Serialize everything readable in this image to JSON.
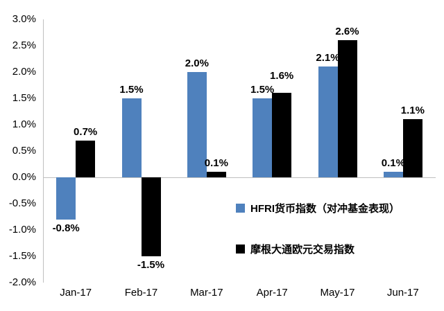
{
  "chart_data": {
    "type": "bar",
    "title": "",
    "xlabel": "",
    "ylabel": "",
    "categories": [
      "Jan-17",
      "Feb-17",
      "Mar-17",
      "Apr-17",
      "May-17",
      "Jun-17"
    ],
    "series": [
      {
        "name": "HFRI货币指数（对冲基金表现）",
        "color": "#4F81BD",
        "values": [
          -0.8,
          1.5,
          2.0,
          1.5,
          2.1,
          0.1
        ],
        "labels": [
          "-0.8%",
          "1.5%",
          "2.0%",
          "1.5%",
          "2.1%",
          "0.1%"
        ]
      },
      {
        "name": "摩根大通欧元交易指数",
        "color": "#000000",
        "values": [
          0.7,
          -1.5,
          0.1,
          1.6,
          2.6,
          1.1
        ],
        "labels": [
          "0.7%",
          "-1.5%",
          "0.1%",
          "1.6%",
          "2.6%",
          "1.1%"
        ]
      }
    ],
    "ylim": [
      -2.0,
      3.0
    ],
    "ytick_step": 0.5,
    "ytick_labels": [
      "3.0%",
      "2.5%",
      "2.0%",
      "1.5%",
      "1.0%",
      "0.5%",
      "0.0%",
      "-0.5%",
      "-1.0%",
      "-1.5%",
      "-2.0%"
    ],
    "grid": false,
    "legend_position": "center-right",
    "axis_line_color": "#bfbfbf"
  }
}
